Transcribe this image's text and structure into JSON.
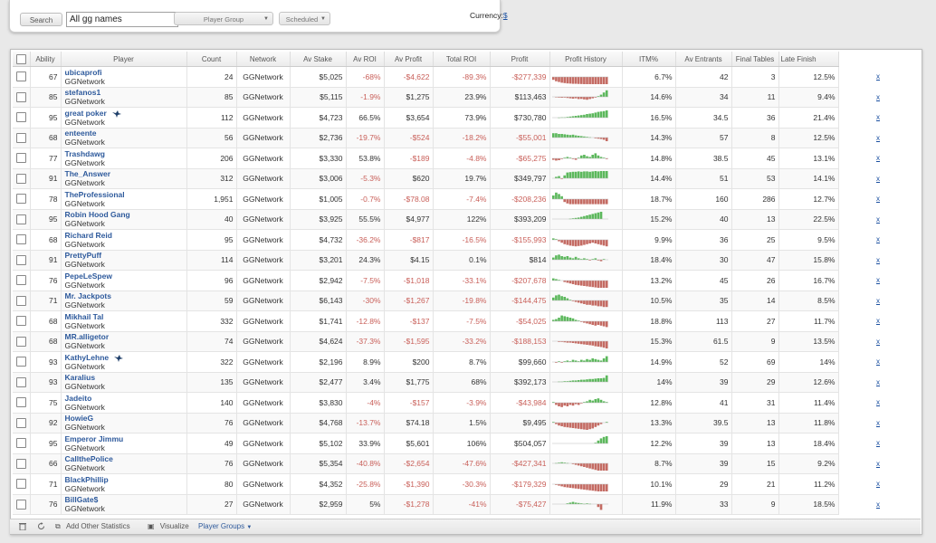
{
  "toolbar": {
    "search_label": "Search",
    "search_value": "All gg names",
    "player_group_label": "Player Group",
    "scheduled_label": "Scheduled",
    "currency_label": "Currency:",
    "currency_value": "$"
  },
  "columns": [
    "Ability",
    "Player",
    "Count",
    "Network",
    "Av Stake",
    "Av ROI",
    "Av Profit",
    "Total ROI",
    "Profit",
    "Profit History",
    "ITM%",
    "Av Entrants",
    "Final Tables",
    "Late Finish"
  ],
  "colors": {
    "positive": "#5cb85c",
    "negative": "#c46b63",
    "link": "#2e5a9c"
  },
  "rows": [
    {
      "ability": "67",
      "player": "ubicaprofi",
      "network_sub": "GGNetwork",
      "count": "24",
      "network": "GGNetwork",
      "av_stake": "$5,025",
      "av_roi": "-68%",
      "av_profit": "-$4,622",
      "total_roi": "-89.3%",
      "profit": "-$277,339",
      "itm": "6.7%",
      "av_entrants": "42",
      "final_tables": "3",
      "late_finish": "12.5%",
      "x": "x",
      "trend": [
        -0.4,
        -0.6,
        -0.7,
        -0.8,
        -0.85,
        -0.9,
        -0.92,
        -0.95,
        -0.95,
        -0.97,
        -0.98,
        -1,
        -1,
        -1,
        -1,
        -1,
        -1,
        -1,
        -1,
        -1
      ]
    },
    {
      "ability": "85",
      "player": "stefanos1",
      "network_sub": "GGNetwork",
      "count": "85",
      "network": "GGNetwork",
      "av_stake": "$5,115",
      "av_roi": "-1.9%",
      "av_profit": "$1,275",
      "total_roi": "23.9%",
      "profit": "$113,463",
      "itm": "14.6%",
      "av_entrants": "34",
      "final_tables": "11",
      "late_finish": "9.4%",
      "x": "x",
      "trend": [
        0,
        -0.05,
        -0.1,
        -0.12,
        -0.1,
        -0.15,
        -0.2,
        -0.25,
        -0.2,
        -0.3,
        -0.28,
        -0.35,
        -0.4,
        -0.3,
        -0.2,
        -0.1,
        0.1,
        0.3,
        0.6,
        0.9
      ]
    },
    {
      "ability": "95",
      "player": "great poker",
      "network_sub": "GGNetwork",
      "bird": true,
      "count": "112",
      "network": "GGNetwork",
      "av_stake": "$4,723",
      "av_roi": "66.5%",
      "av_profit": "$3,654",
      "total_roi": "73.9%",
      "profit": "$730,780",
      "itm": "16.5%",
      "av_entrants": "34.5",
      "final_tables": "36",
      "late_finish": "21.4%",
      "x": "x",
      "trend": [
        0,
        0,
        0.02,
        0.05,
        0.05,
        0.1,
        0.15,
        0.2,
        0.25,
        0.3,
        0.35,
        0.4,
        0.5,
        0.55,
        0.6,
        0.7,
        0.8,
        0.85,
        0.9,
        1
      ]
    },
    {
      "ability": "68",
      "player": "enteente",
      "network_sub": "GGNetwork",
      "count": "56",
      "network": "GGNetwork",
      "av_stake": "$2,736",
      "av_roi": "-19.7%",
      "av_profit": "-$524",
      "total_roi": "-18.2%",
      "profit": "-$55,001",
      "itm": "14.3%",
      "av_entrants": "57",
      "final_tables": "8",
      "late_finish": "12.5%",
      "x": "x",
      "trend": [
        0.6,
        0.6,
        0.5,
        0.5,
        0.45,
        0.4,
        0.35,
        0.4,
        0.3,
        0.25,
        0.2,
        0.15,
        0.1,
        0.05,
        0,
        -0.1,
        -0.15,
        -0.2,
        -0.3,
        -0.5
      ]
    },
    {
      "ability": "77",
      "player": "Trashdawg",
      "network_sub": "GGNetwork",
      "count": "206",
      "network": "GGNetwork",
      "av_stake": "$3,330",
      "av_roi": "53.8%",
      "av_profit": "-$189",
      "total_roi": "-4.8%",
      "profit": "-$65,275",
      "itm": "14.8%",
      "av_entrants": "38.5",
      "final_tables": "45",
      "late_finish": "13.1%",
      "x": "x",
      "trend": [
        -0.2,
        -0.3,
        -0.25,
        -0.1,
        0.1,
        0.2,
        0.1,
        -0.1,
        -0.2,
        0.1,
        0.4,
        0.5,
        0.3,
        0.2,
        0.5,
        0.7,
        0.4,
        0.2,
        0.1,
        -0.1
      ]
    },
    {
      "ability": "91",
      "player": "The_Answer",
      "network_sub": "GGNetwork",
      "count": "312",
      "network": "GGNetwork",
      "av_stake": "$3,006",
      "av_roi": "-5.3%",
      "av_profit": "$620",
      "total_roi": "19.7%",
      "profit": "$349,797",
      "itm": "14.4%",
      "av_entrants": "51",
      "final_tables": "53",
      "late_finish": "14.1%",
      "x": "x",
      "trend": [
        0,
        0.2,
        0.3,
        -0.1,
        0.4,
        0.8,
        0.85,
        0.9,
        0.9,
        0.95,
        0.9,
        0.95,
        0.95,
        0.9,
        0.95,
        1,
        0.95,
        1,
        1,
        1
      ]
    },
    {
      "ability": "78",
      "player": "TheProfessional",
      "network_sub": "GGNetwork",
      "count": "1,951",
      "network": "GGNetwork",
      "av_stake": "$1,005",
      "av_roi": "-0.7%",
      "av_profit": "-$78.08",
      "total_roi": "-7.4%",
      "profit": "-$208,236",
      "itm": "18.7%",
      "av_entrants": "160",
      "final_tables": "286",
      "late_finish": "12.7%",
      "x": "x",
      "trend": [
        0.5,
        0.9,
        0.7,
        0.4,
        -0.4,
        -0.6,
        -0.7,
        -0.7,
        -0.7,
        -0.7,
        -0.7,
        -0.7,
        -0.7,
        -0.7,
        -0.7,
        -0.7,
        -0.7,
        -0.7,
        -0.7,
        -0.7
      ]
    },
    {
      "ability": "95",
      "player": "Robin Hood Gang",
      "network_sub": "GGNetwork",
      "count": "40",
      "network": "GGNetwork",
      "av_stake": "$3,925",
      "av_roi": "55.5%",
      "av_profit": "$4,977",
      "total_roi": "122%",
      "profit": "$393,209",
      "itm": "15.2%",
      "av_entrants": "40",
      "final_tables": "13",
      "late_finish": "22.5%",
      "x": "x",
      "trend": [
        0,
        0,
        0,
        0,
        0,
        0,
        0.05,
        0.1,
        0.15,
        0.2,
        0.3,
        0.4,
        0.5,
        0.6,
        0.7,
        0.8,
        0.9,
        1,
        0,
        0
      ]
    },
    {
      "ability": "68",
      "player": "Richard Reid",
      "network_sub": "GGNetwork",
      "count": "95",
      "network": "GGNetwork",
      "av_stake": "$4,732",
      "av_roi": "-36.2%",
      "av_profit": "-$817",
      "total_roi": "-16.5%",
      "profit": "-$155,993",
      "itm": "9.9%",
      "av_entrants": "36",
      "final_tables": "25",
      "late_finish": "9.5%",
      "x": "x",
      "trend": [
        0.2,
        0.1,
        -0.2,
        -0.4,
        -0.6,
        -0.7,
        -0.8,
        -0.85,
        -0.9,
        -0.85,
        -0.8,
        -0.7,
        -0.6,
        -0.5,
        -0.4,
        -0.5,
        -0.6,
        -0.7,
        -0.8,
        -0.9
      ]
    },
    {
      "ability": "91",
      "player": "PrettyPuff",
      "network_sub": "GGNetwork",
      "count": "114",
      "network": "GGNetwork",
      "av_stake": "$3,201",
      "av_roi": "24.3%",
      "av_profit": "$4.15",
      "total_roi": "0.1%",
      "profit": "$814",
      "itm": "18.4%",
      "av_entrants": "30",
      "final_tables": "47",
      "late_finish": "15.8%",
      "x": "x",
      "trend": [
        0.3,
        0.6,
        0.7,
        0.5,
        0.4,
        0.5,
        0.3,
        0.2,
        0.4,
        0.2,
        0.1,
        0.2,
        0.1,
        -0.1,
        0.1,
        0.2,
        -0.1,
        -0.2,
        0.1,
        0
      ]
    },
    {
      "ability": "76",
      "player": "PepeLeSpew",
      "network_sub": "GGNetwork",
      "count": "96",
      "network": "GGNetwork",
      "av_stake": "$2,942",
      "av_roi": "-7.5%",
      "av_profit": "-$1,018",
      "total_roi": "-33.1%",
      "profit": "-$207,678",
      "itm": "13.2%",
      "av_entrants": "45",
      "final_tables": "26",
      "late_finish": "16.7%",
      "x": "x",
      "trend": [
        0.3,
        0.2,
        0.1,
        0,
        -0.2,
        -0.3,
        -0.4,
        -0.5,
        -0.6,
        -0.65,
        -0.7,
        -0.75,
        -0.8,
        -0.85,
        -0.9,
        -0.95,
        -1,
        -1,
        -1,
        -1
      ]
    },
    {
      "ability": "71",
      "player": "Mr. Jackpots",
      "network_sub": "GGNetwork",
      "count": "59",
      "network": "GGNetwork",
      "av_stake": "$6,143",
      "av_roi": "-30%",
      "av_profit": "-$1,267",
      "total_roi": "-19.8%",
      "profit": "-$144,475",
      "itm": "10.5%",
      "av_entrants": "35",
      "final_tables": "14",
      "late_finish": "8.5%",
      "x": "x",
      "trend": [
        0.4,
        0.7,
        0.8,
        0.6,
        0.5,
        0.3,
        0.1,
        -0.1,
        -0.2,
        -0.3,
        -0.4,
        -0.5,
        -0.6,
        -0.6,
        -0.7,
        -0.7,
        -0.8,
        -0.8,
        -0.9,
        -0.9
      ]
    },
    {
      "ability": "68",
      "player": "Mikhail Tal",
      "network_sub": "GGNetwork",
      "count": "332",
      "network": "GGNetwork",
      "av_stake": "$1,741",
      "av_roi": "-12.8%",
      "av_profit": "-$137",
      "total_roi": "-7.5%",
      "profit": "-$54,025",
      "itm": "18.8%",
      "av_entrants": "113",
      "final_tables": "27",
      "late_finish": "11.7%",
      "x": "x",
      "trend": [
        0.2,
        0.3,
        0.5,
        0.8,
        0.7,
        0.6,
        0.5,
        0.4,
        0.2,
        0.1,
        -0.1,
        -0.2,
        -0.3,
        -0.4,
        -0.5,
        -0.6,
        -0.5,
        -0.6,
        -0.7,
        -0.8
      ]
    },
    {
      "ability": "68",
      "player": "MR.alligetor",
      "network_sub": "GGNetwork",
      "count": "74",
      "network": "GGNetwork",
      "av_stake": "$4,624",
      "av_roi": "-37.3%",
      "av_profit": "-$1,595",
      "total_roi": "-33.2%",
      "profit": "-$188,153",
      "itm": "15.3%",
      "av_entrants": "61.5",
      "final_tables": "9",
      "late_finish": "13.5%",
      "x": "x",
      "trend": [
        0,
        0,
        -0.1,
        -0.1,
        -0.15,
        -0.2,
        -0.2,
        -0.25,
        -0.3,
        -0.35,
        -0.4,
        -0.45,
        -0.5,
        -0.55,
        -0.6,
        -0.7,
        -0.75,
        -0.8,
        -0.9,
        -1
      ]
    },
    {
      "ability": "93",
      "player": "KathyLehne",
      "network_sub": "GGNetwork",
      "bird": true,
      "count": "322",
      "network": "GGNetwork",
      "av_stake": "$2,196",
      "av_roi": "8.9%",
      "av_profit": "$200",
      "total_roi": "8.7%",
      "profit": "$99,660",
      "itm": "14.9%",
      "av_entrants": "52",
      "final_tables": "69",
      "late_finish": "14%",
      "x": "x",
      "trend": [
        0,
        -0.1,
        0.1,
        -0.1,
        0.1,
        0.2,
        0.1,
        0.3,
        0.2,
        0.1,
        0.3,
        0.2,
        0.4,
        0.3,
        0.5,
        0.4,
        0.3,
        0.2,
        0.5,
        0.8
      ]
    },
    {
      "ability": "93",
      "player": "Karalius",
      "network_sub": "GGNetwork",
      "count": "135",
      "network": "GGNetwork",
      "av_stake": "$2,477",
      "av_roi": "3.4%",
      "av_profit": "$1,775",
      "total_roi": "68%",
      "profit": "$392,173",
      "itm": "14%",
      "av_entrants": "39",
      "final_tables": "29",
      "late_finish": "12.6%",
      "x": "x",
      "trend": [
        0,
        0,
        0.05,
        0.05,
        0.1,
        0.1,
        0.15,
        0.2,
        0.2,
        0.25,
        0.3,
        0.3,
        0.35,
        0.4,
        0.4,
        0.45,
        0.5,
        0.5,
        0.55,
        0.9
      ]
    },
    {
      "ability": "75",
      "player": "Jadeito",
      "network_sub": "GGNetwork",
      "count": "140",
      "network": "GGNetwork",
      "av_stake": "$3,830",
      "av_roi": "-4%",
      "av_profit": "-$157",
      "total_roi": "-3.9%",
      "profit": "-$43,984",
      "itm": "12.8%",
      "av_entrants": "41",
      "final_tables": "31",
      "late_finish": "11.4%",
      "x": "x",
      "trend": [
        0.1,
        -0.3,
        -0.5,
        -0.6,
        -0.4,
        -0.5,
        -0.3,
        -0.4,
        -0.2,
        -0.3,
        -0.1,
        0.1,
        0.2,
        0.4,
        0.3,
        0.5,
        0.6,
        0.4,
        0.2,
        0.1
      ]
    },
    {
      "ability": "92",
      "player": "HowieG",
      "network_sub": "GGNetwork",
      "count": "76",
      "network": "GGNetwork",
      "av_stake": "$4,768",
      "av_roi": "-13.7%",
      "av_profit": "$74.18",
      "total_roi": "1.5%",
      "profit": "$9,495",
      "itm": "13.3%",
      "av_entrants": "39.5",
      "final_tables": "13",
      "late_finish": "11.8%",
      "x": "x",
      "trend": [
        0.1,
        -0.2,
        -0.4,
        -0.5,
        -0.6,
        -0.65,
        -0.7,
        -0.75,
        -0.8,
        -0.85,
        -0.9,
        -0.95,
        -1,
        -0.9,
        -0.8,
        -0.6,
        -0.4,
        -0.2,
        0,
        0.1
      ]
    },
    {
      "ability": "95",
      "player": "Emperor Jimmu",
      "network_sub": "GGNetwork",
      "count": "49",
      "network": "GGNetwork",
      "av_stake": "$5,102",
      "av_roi": "33.9%",
      "av_profit": "$5,601",
      "total_roi": "106%",
      "profit": "$504,057",
      "itm": "12.2%",
      "av_entrants": "39",
      "final_tables": "13",
      "late_finish": "18.4%",
      "x": "x",
      "trend": [
        0,
        0,
        0,
        0,
        0,
        0,
        0,
        0,
        0,
        0,
        0,
        0,
        0,
        0,
        0,
        0.1,
        0.4,
        0.7,
        0.9,
        1
      ]
    },
    {
      "ability": "66",
      "player": "CallthePolice",
      "network_sub": "GGNetwork",
      "count": "76",
      "network": "GGNetwork",
      "av_stake": "$5,354",
      "av_roi": "-40.8%",
      "av_profit": "-$2,654",
      "total_roi": "-47.6%",
      "profit": "-$427,341",
      "itm": "8.7%",
      "av_entrants": "39",
      "final_tables": "15",
      "late_finish": "9.2%",
      "x": "x",
      "trend": [
        0,
        0.05,
        0.1,
        0.15,
        0.1,
        0.05,
        0,
        -0.1,
        -0.2,
        -0.3,
        -0.4,
        -0.5,
        -0.6,
        -0.7,
        -0.8,
        -0.9,
        -1,
        -1,
        -1,
        -1
      ]
    },
    {
      "ability": "71",
      "player": "BlackPhillip",
      "network_sub": "GGNetwork",
      "count": "80",
      "network": "GGNetwork",
      "av_stake": "$4,352",
      "av_roi": "-25.8%",
      "av_profit": "-$1,390",
      "total_roi": "-30.3%",
      "profit": "-$179,329",
      "itm": "10.1%",
      "av_entrants": "29",
      "final_tables": "21",
      "late_finish": "11.2%",
      "x": "x",
      "trend": [
        0,
        -0.1,
        -0.2,
        -0.3,
        -0.4,
        -0.45,
        -0.5,
        -0.55,
        -0.6,
        -0.65,
        -0.7,
        -0.75,
        -0.8,
        -0.85,
        -0.9,
        -0.95,
        -1,
        -1,
        -1,
        -1
      ]
    },
    {
      "ability": "76",
      "player": "BillGate$",
      "network_sub": "GGNetwork",
      "count": "27",
      "network": "GGNetwork",
      "av_stake": "$2,959",
      "av_roi": "5%",
      "av_profit": "-$1,278",
      "total_roi": "-41%",
      "profit": "-$75,427",
      "itm": "11.9%",
      "av_entrants": "33",
      "final_tables": "9",
      "late_finish": "18.5%",
      "x": "x",
      "trend": [
        0,
        0,
        0,
        0,
        0,
        0.1,
        0.2,
        0.3,
        0.2,
        0.15,
        0.1,
        0.05,
        0.1,
        0.05,
        0,
        0,
        -0.4,
        -0.8,
        0,
        0
      ]
    }
  ],
  "footer": {
    "add_stats": "Add Other Statistics",
    "visualize": "Visualize",
    "player_groups": "Player Groups"
  }
}
